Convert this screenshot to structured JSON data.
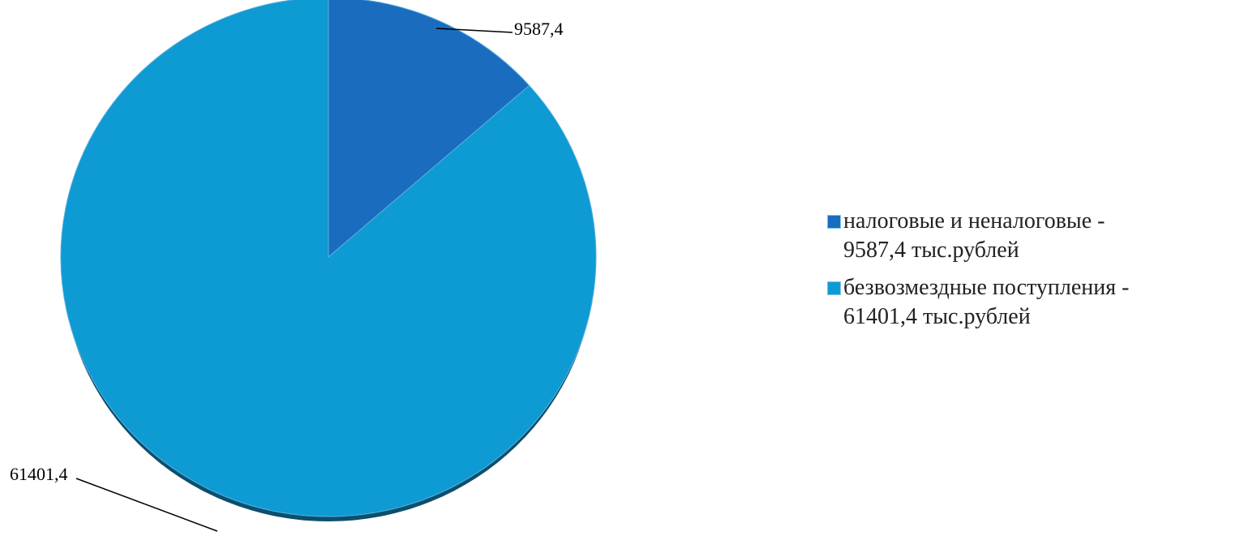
{
  "chart_data": {
    "type": "pie",
    "categories": [
      "налоговые и неналоговые -\n9587,4 тыс.рублей",
      "безвозмездные поступления -\n61401,4 тыс.рублей"
    ],
    "values": [
      9587.4,
      61401.4
    ],
    "value_labels": [
      "9587,4",
      "61401,4"
    ],
    "colors": [
      "#1a6cbf",
      "#0e9ad3"
    ],
    "legend": "right"
  }
}
